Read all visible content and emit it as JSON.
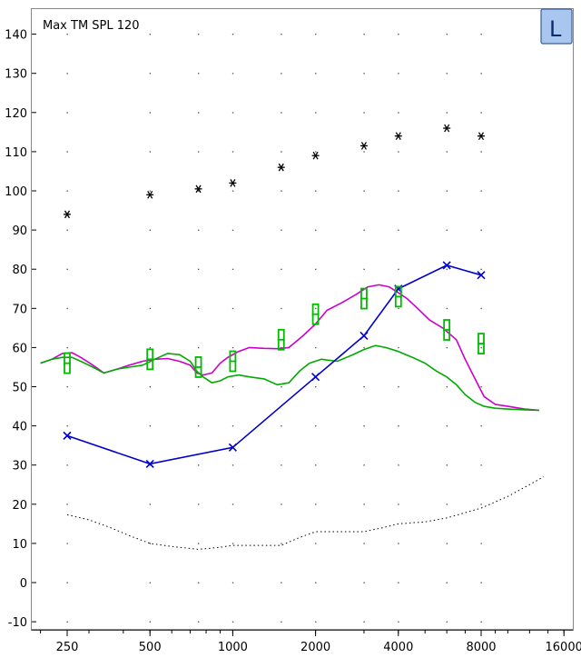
{
  "chart_data": {
    "type": "line",
    "title": "Max TM SPL 120",
    "ear_badge": "L",
    "xscale": "log",
    "xlim": [
      200,
      16000
    ],
    "ylim": [
      -12,
      145
    ],
    "x_ticks": [
      250,
      500,
      1000,
      2000,
      4000,
      8000,
      16000
    ],
    "y_ticks": [
      -10,
      0,
      10,
      20,
      30,
      40,
      50,
      60,
      70,
      80,
      90,
      100,
      110,
      120,
      130,
      140
    ],
    "grid": "dotted",
    "legend": "none",
    "series": [
      {
        "key": "magenta_curve",
        "color": "#cc00cc",
        "style": "line",
        "x": [
          200,
          220,
          240,
          260,
          280,
          310,
          340,
          380,
          420,
          470,
          520,
          580,
          640,
          700,
          740,
          780,
          840,
          900,
          960,
          1050,
          1150,
          1300,
          1450,
          1600,
          1800,
          2000,
          2200,
          2500,
          2800,
          3100,
          3400,
          3700,
          4000,
          4300,
          4700,
          5200,
          5800,
          6500,
          7000,
          7600,
          8200,
          9000,
          10000,
          11500,
          13000
        ],
        "y": [
          56,
          57,
          58.5,
          58.7,
          57.5,
          55.5,
          53.5,
          54.5,
          55.5,
          56.5,
          57,
          57.2,
          56.5,
          55.5,
          53.5,
          53,
          53.5,
          56,
          57.5,
          59,
          60,
          59.8,
          59.7,
          60,
          63,
          66,
          69.5,
          71.5,
          73.5,
          75.5,
          76,
          75.5,
          74,
          72.5,
          70,
          67,
          65,
          62,
          57,
          52,
          47.5,
          45.5,
          45,
          44.3,
          44
        ]
      },
      {
        "key": "green_curve",
        "color": "#00aa00",
        "style": "line",
        "x": [
          200,
          220,
          240,
          260,
          280,
          310,
          340,
          380,
          420,
          470,
          520,
          580,
          640,
          700,
          740,
          780,
          840,
          900,
          960,
          1050,
          1150,
          1300,
          1450,
          1600,
          1750,
          1900,
          2100,
          2400,
          2700,
          3000,
          3300,
          3600,
          4000,
          4500,
          5000,
          5500,
          6000,
          6500,
          7000,
          7600,
          8200,
          9000,
          10000,
          11500,
          13000
        ],
        "y": [
          56,
          57,
          57.5,
          57.5,
          56.5,
          55,
          53.5,
          54.5,
          55,
          55.5,
          57,
          58.5,
          58.2,
          56.5,
          54,
          52.5,
          51,
          51.5,
          52.5,
          53,
          52.5,
          52,
          50.5,
          51,
          54,
          56,
          57,
          56.5,
          58,
          59.5,
          60.5,
          60,
          59,
          57.5,
          56,
          54,
          52.5,
          50.5,
          48,
          46,
          45,
          44.5,
          44.3,
          44.1,
          44
        ]
      },
      {
        "key": "blue_measured",
        "color": "#0000cc",
        "style": "line-x",
        "x": [
          250,
          500,
          1000,
          2000,
          3000,
          4000,
          6000,
          8000
        ],
        "y": [
          37.5,
          30.3,
          34.5,
          52.5,
          63,
          75,
          81,
          78.5
        ]
      },
      {
        "key": "black_dotted",
        "color": "#000000",
        "style": "dotted",
        "x": [
          250,
          300,
          360,
          420,
          500,
          600,
          750,
          900,
          1000,
          1250,
          1500,
          1750,
          2000,
          2500,
          3000,
          3500,
          4000,
          5000,
          6000,
          8000,
          10000,
          12000,
          13500
        ],
        "y": [
          17.3,
          16,
          14,
          12,
          10,
          9.2,
          8.5,
          9,
          9.5,
          9.5,
          9.5,
          11.5,
          13,
          13,
          13,
          14,
          15,
          15.5,
          16.5,
          19,
          22,
          25,
          27
        ]
      },
      {
        "key": "max_spl_stars",
        "color": "#000000",
        "style": "marker-star",
        "x": [
          250,
          500,
          750,
          1000,
          1500,
          2000,
          3000,
          4000,
          6000,
          8000
        ],
        "y": [
          94,
          99,
          100.5,
          102,
          106,
          109,
          111.5,
          114,
          116,
          114
        ]
      },
      {
        "key": "green_targets",
        "color": "#00bb00",
        "style": "marker-target",
        "x": [
          250,
          500,
          750,
          1000,
          1500,
          2000,
          3000,
          4000,
          6000,
          8000
        ],
        "y": [
          56,
          57,
          55,
          56.5,
          62,
          68.5,
          72.5,
          73,
          64.5,
          61
        ]
      }
    ]
  }
}
